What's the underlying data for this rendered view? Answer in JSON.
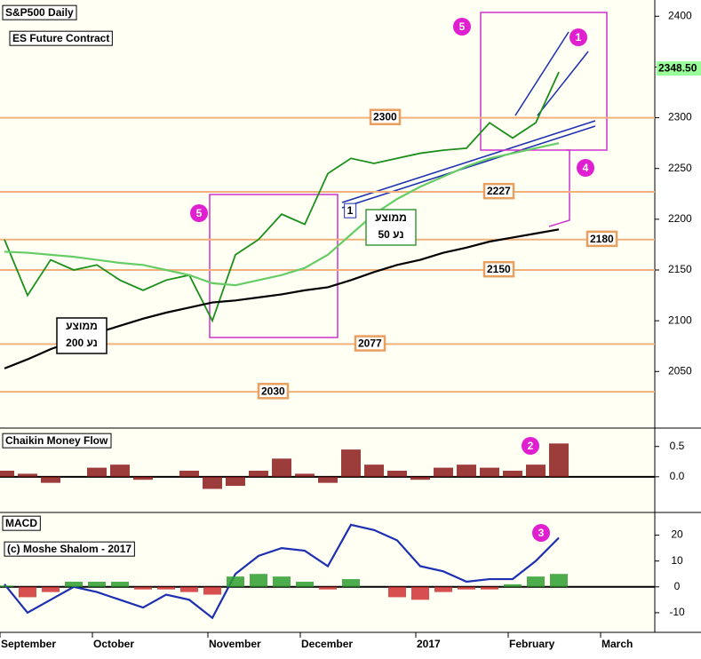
{
  "chart_data": [
    {
      "type": "line",
      "title": "S&P500 Daily",
      "subtitle": "ES Future Contract",
      "ylim": [
        1996,
        2416
      ],
      "yticks": [
        2050,
        2100,
        2150,
        2200,
        2250,
        2300,
        2350,
        2400
      ],
      "series": [
        {
          "color": "#1a8f1a",
          "values": [
            2180,
            2125,
            2160,
            2150,
            2155,
            2140,
            2130,
            2140,
            2145,
            2100,
            2165,
            2180,
            2205,
            2195,
            2245,
            2260,
            2255,
            2260,
            2265,
            2268,
            2270,
            2295,
            2280,
            2295,
            2345,
            null,
            null
          ]
        },
        {
          "color": "#66cc66",
          "values": [
            2168,
            2167,
            2165,
            2163,
            2160,
            2157,
            2155,
            2150,
            2145,
            2137,
            2135,
            2140,
            2145,
            2152,
            2165,
            2185,
            2205,
            2220,
            2232,
            2242,
            2252,
            2260,
            2265,
            2270,
            2275,
            null,
            null
          ]
        },
        {
          "color": "#000000",
          "values": [
            2053,
            2062,
            2072,
            2080,
            2088,
            2095,
            2102,
            2108,
            2113,
            2118,
            2120,
            2123,
            2126,
            2130,
            2133,
            2140,
            2148,
            2155,
            2160,
            2167,
            2172,
            2178,
            2182,
            2186,
            2190,
            null,
            null
          ]
        }
      ],
      "levels": [
        2300,
        2227,
        2180,
        2150,
        2077,
        2030
      ],
      "level_color": "#f0b27a",
      "last_price": {
        "value": 2348.5,
        "label": "2348.50"
      },
      "markers": [
        "5",
        "5",
        "1",
        "4"
      ],
      "channel_label": "1",
      "ma200_label": [
        "ממוצע",
        "נע 200"
      ],
      "ma50_label": [
        "ממוצע",
        "נע 50"
      ]
    },
    {
      "type": "bar",
      "title": "Chaikin Money Flow",
      "color": "#8b1a1a",
      "ylim": [
        -0.56,
        0.76
      ],
      "yticks": [
        0.5,
        {
          "value": 0,
          "label": "0.0"
        }
      ],
      "values": [
        0.1,
        0.05,
        -0.1,
        0,
        0.15,
        0.2,
        -0.05,
        0,
        0.1,
        -0.2,
        -0.15,
        0.1,
        0.3,
        0.05,
        -0.1,
        0.45,
        0.2,
        0.1,
        -0.05,
        0.15,
        0.2,
        0.15,
        0.1,
        0.2,
        0.55,
        null,
        null
      ],
      "markers": [
        "2"
      ]
    },
    {
      "type": "line",
      "title": "MACD",
      "subtitle": "(c) Moshe Shalom - 2017",
      "ylim": [
        -17.6,
        28.1
      ],
      "yticks": [
        -10,
        0,
        10,
        20
      ],
      "categories": [
        "September",
        null,
        null,
        null,
        "October",
        null,
        null,
        null,
        null,
        "November",
        null,
        null,
        null,
        "December",
        null,
        null,
        null,
        null,
        "2017",
        null,
        null,
        null,
        "February",
        null,
        null,
        null,
        "March"
      ],
      "series": [
        {
          "color": "#1c2fb0",
          "values": [
            1,
            -10,
            -5,
            0,
            -2,
            -5,
            -8,
            -3,
            -5,
            -12,
            5,
            12,
            15,
            14,
            8,
            24,
            22,
            18,
            8,
            6,
            2,
            3,
            3,
            10,
            19,
            null,
            null
          ]
        },
        {
          "type": "bar",
          "color": "#2e9e2e",
          "negative_color": "#d03030",
          "values": [
            0.5,
            -4,
            -2,
            2,
            2,
            2,
            -1,
            -1,
            -2,
            -3,
            4,
            5,
            4,
            2,
            -1,
            3,
            0,
            -4,
            -5,
            -2,
            -1,
            -1,
            1,
            4,
            5,
            null,
            null
          ]
        }
      ],
      "markers": [
        "3"
      ]
    }
  ]
}
